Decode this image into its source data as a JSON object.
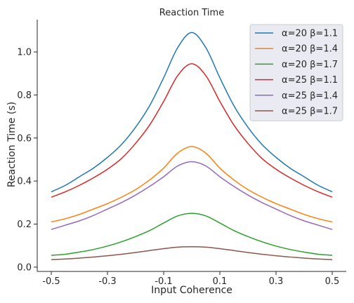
{
  "chart_data": {
    "type": "line",
    "title": "Reaction Time",
    "xlabel": "Input Coherence",
    "ylabel": "Reaction Time (s)",
    "xlim": [
      -0.55,
      0.55
    ],
    "ylim": [
      -0.02,
      1.15
    ],
    "xticks": [
      -0.5,
      -0.3,
      -0.1,
      0.1,
      0.3,
      0.5
    ],
    "xtick_labels": [
      "-0.5",
      "-0.3",
      "-0.1",
      "0.1",
      "0.3",
      "0.5"
    ],
    "yticks": [
      0.0,
      0.2,
      0.4,
      0.6,
      0.8,
      1.0
    ],
    "ytick_labels": [
      "0.0",
      "0.2",
      "0.4",
      "0.6",
      "0.8",
      "1.0"
    ],
    "grid": false,
    "legend_position": "top-right",
    "x": [
      -0.5,
      -0.45,
      -0.4,
      -0.35,
      -0.3,
      -0.25,
      -0.2,
      -0.15,
      -0.1,
      -0.05,
      0.0,
      0.05,
      0.1,
      0.15,
      0.2,
      0.25,
      0.3,
      0.35,
      0.4,
      0.45,
      0.5
    ],
    "series": [
      {
        "name": "α=20 β=1.1",
        "color": "#1f77b4",
        "values": [
          0.35,
          0.38,
          0.42,
          0.46,
          0.51,
          0.57,
          0.65,
          0.75,
          0.88,
          1.02,
          1.09,
          1.02,
          0.88,
          0.75,
          0.65,
          0.57,
          0.51,
          0.46,
          0.42,
          0.38,
          0.35
        ]
      },
      {
        "name": "α=20 β=1.4",
        "color": "#ff7f0e",
        "values": [
          0.21,
          0.225,
          0.245,
          0.27,
          0.295,
          0.325,
          0.36,
          0.405,
          0.46,
          0.53,
          0.56,
          0.53,
          0.46,
          0.405,
          0.36,
          0.325,
          0.295,
          0.27,
          0.245,
          0.225,
          0.21
        ]
      },
      {
        "name": "α=20 β=1.7",
        "color": "#2ca02c",
        "values": [
          0.055,
          0.06,
          0.07,
          0.082,
          0.098,
          0.118,
          0.142,
          0.17,
          0.205,
          0.238,
          0.25,
          0.238,
          0.205,
          0.17,
          0.142,
          0.118,
          0.098,
          0.082,
          0.07,
          0.06,
          0.055
        ]
      },
      {
        "name": "α=25 β=1.1",
        "color": "#d62728",
        "values": [
          0.325,
          0.35,
          0.38,
          0.415,
          0.455,
          0.505,
          0.575,
          0.66,
          0.77,
          0.89,
          0.945,
          0.89,
          0.77,
          0.66,
          0.575,
          0.505,
          0.455,
          0.415,
          0.38,
          0.35,
          0.325
        ]
      },
      {
        "name": "α=25 β=1.4",
        "color": "#9467bd",
        "values": [
          0.175,
          0.195,
          0.215,
          0.24,
          0.27,
          0.3,
          0.335,
          0.375,
          0.42,
          0.47,
          0.49,
          0.47,
          0.42,
          0.375,
          0.335,
          0.3,
          0.27,
          0.24,
          0.215,
          0.195,
          0.175
        ]
      },
      {
        "name": "α=25 β=1.7",
        "color": "#8c564b",
        "values": [
          0.035,
          0.038,
          0.042,
          0.047,
          0.053,
          0.06,
          0.068,
          0.077,
          0.086,
          0.093,
          0.095,
          0.093,
          0.086,
          0.077,
          0.068,
          0.06,
          0.053,
          0.047,
          0.042,
          0.038,
          0.035
        ]
      }
    ]
  }
}
